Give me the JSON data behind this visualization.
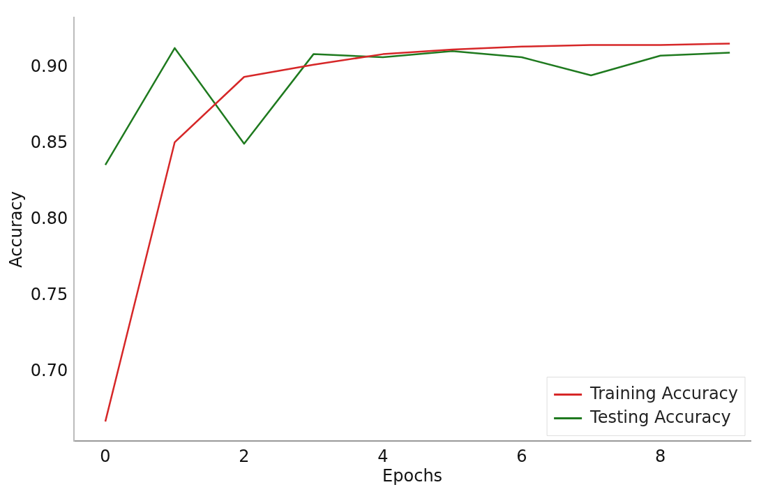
{
  "chart_data": {
    "type": "line",
    "xlabel": "Epochs",
    "ylabel": "Accuracy",
    "x": [
      0,
      1,
      2,
      3,
      4,
      5,
      6,
      7,
      8,
      9
    ],
    "series": [
      {
        "name": "Training Accuracy",
        "color": "#d62728",
        "values": [
          0.667,
          0.851,
          0.894,
          0.902,
          0.909,
          0.912,
          0.914,
          0.915,
          0.915,
          0.916
        ]
      },
      {
        "name": "Testing Accuracy",
        "color": "#1f7a1f",
        "values": [
          0.836,
          0.913,
          0.85,
          0.909,
          0.907,
          0.911,
          0.907,
          0.895,
          0.908,
          0.91
        ]
      }
    ],
    "xlim": [
      -0.45,
      9.3
    ],
    "xticks": [
      0,
      2,
      4,
      6,
      8
    ],
    "ylim": [
      0.654,
      0.933
    ],
    "yticks": [
      {
        "value": 0.7,
        "label": "0.70"
      },
      0.75,
      {
        "value": 0.8,
        "label": "0.80"
      },
      0.85,
      {
        "value": 0.9,
        "label": "0.90"
      }
    ],
    "grid": false,
    "legend": "bottom right",
    "marker": "none",
    "line_style": "solid"
  }
}
